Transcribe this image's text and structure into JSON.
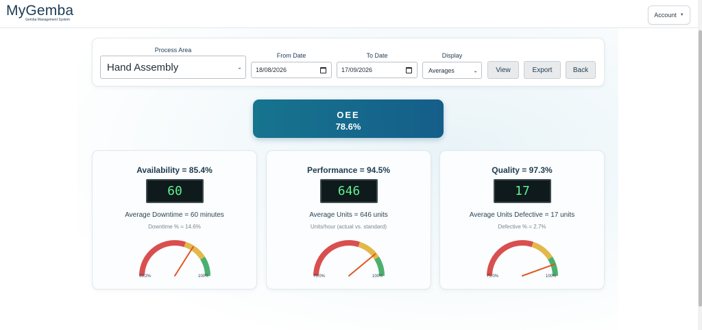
{
  "header": {
    "brand_name": "MyGemba",
    "brand_sub": "Gemba Management System",
    "account_label": "Account"
  },
  "filters": {
    "process_area_label": "Process Area",
    "process_area_value": "Hand Assembly",
    "from_date_label": "From Date",
    "from_date_value": "18/08/2026",
    "to_date_label": "To Date",
    "to_date_value": "17/09/2026",
    "display_label": "Display",
    "display_value": "Averages",
    "view_label": "View",
    "export_label": "Export",
    "back_label": "Back"
  },
  "oee": {
    "label": "OEE",
    "value": "78.6%"
  },
  "cards": [
    {
      "title": "Availability = 85.4%",
      "lcd": "60",
      "sub": "Average Downtime = 60 minutes",
      "note": "Downtime % = 14.6%",
      "gauge_min": "56.2%",
      "gauge_max": "100%",
      "needle_fraction": 0.68
    },
    {
      "title": "Performance = 94.5%",
      "lcd": "646",
      "sub": "Average Units = 646 units",
      "note": "Units/hour (actual vs. standard)",
      "gauge_min": "75.0%",
      "gauge_max": "100%",
      "needle_fraction": 0.78
    },
    {
      "title": "Quality = 97.3%",
      "lcd": "17",
      "sub": "Average Units Defective = 17 units",
      "note": "Defective % = 2.7%",
      "gauge_min": "75.0%",
      "gauge_max": "100%",
      "needle_fraction": 0.89
    }
  ],
  "colors": {
    "gauge_red": "#d94f4f",
    "gauge_amber": "#e2b84a",
    "gauge_green": "#4caf6e",
    "needle": "#e0571e",
    "oee_start": "#16748e",
    "oee_end": "#155e8a",
    "lcd_text": "#5ef08f"
  }
}
